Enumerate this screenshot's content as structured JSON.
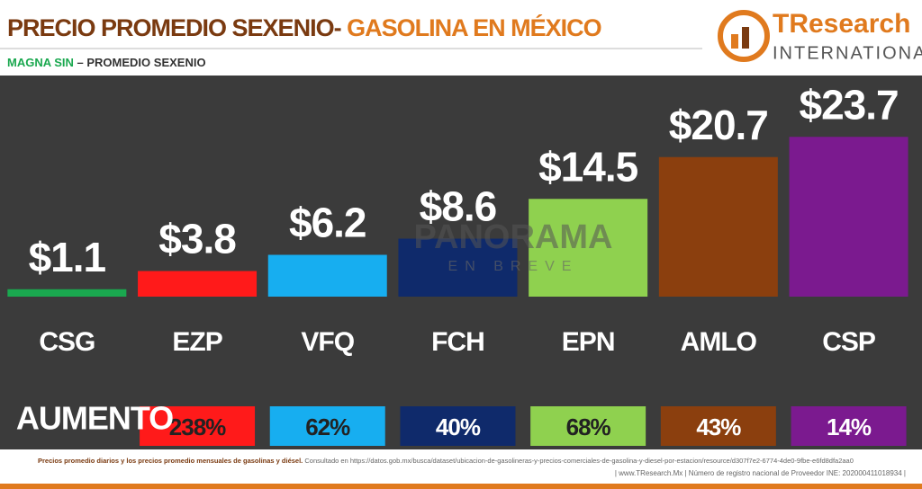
{
  "chart_data": {
    "type": "bar",
    "title": "PRECIO PROMEDIO SEXENIO-",
    "title_highlight": "GASOLINA EN MÉXICO",
    "subtitle_highlight": "MAGNA SIN",
    "subtitle": "– PROMEDIO SEXENIO",
    "logo": {
      "name": "TResearch",
      "tagline": "INTERNATIONAL"
    },
    "watermark": {
      "name": "PANORAMA",
      "tagline": "EN BREVE"
    },
    "categories": [
      "CSG",
      "EZP",
      "VFQ",
      "FCH",
      "EPN",
      "AMLO",
      "CSP"
    ],
    "values": [
      1.1,
      3.8,
      6.2,
      8.6,
      14.5,
      20.7,
      23.7
    ],
    "value_labels": [
      "$1.1",
      "$3.8",
      "$6.2",
      "$8.6",
      "$14.5",
      "$20.7",
      "$23.7"
    ],
    "colors": [
      "#1aa84f",
      "#ff1a1a",
      "#17aef0",
      "#0f2a6b",
      "#8fd14f",
      "#8b3f0e",
      "#7b1a8f"
    ],
    "increase_title": "AUMENTO",
    "increases": [
      238,
      62,
      40,
      68,
      43,
      14
    ],
    "increase_labels": [
      "238%",
      "62%",
      "40%",
      "68%",
      "43%",
      "14%"
    ],
    "footer": {
      "source_note": "Precios promedio diarios y los precios promedio mensuales de gasolinas y diésel.",
      "source_url": "Consultado en https://datos.gob.mx/busca/dataset/ubicacion-de-gasolineras-y-precios-comerciales-de-gasolina-y-diesel-por-estacion/resource/d307f7e2-6774-4de0-9fbe-e6fd8dfa2aa0",
      "registry": "| www.TResearch.Mx | Número de registro nacional de Proveedor INE: 202000411018934 |"
    }
  }
}
